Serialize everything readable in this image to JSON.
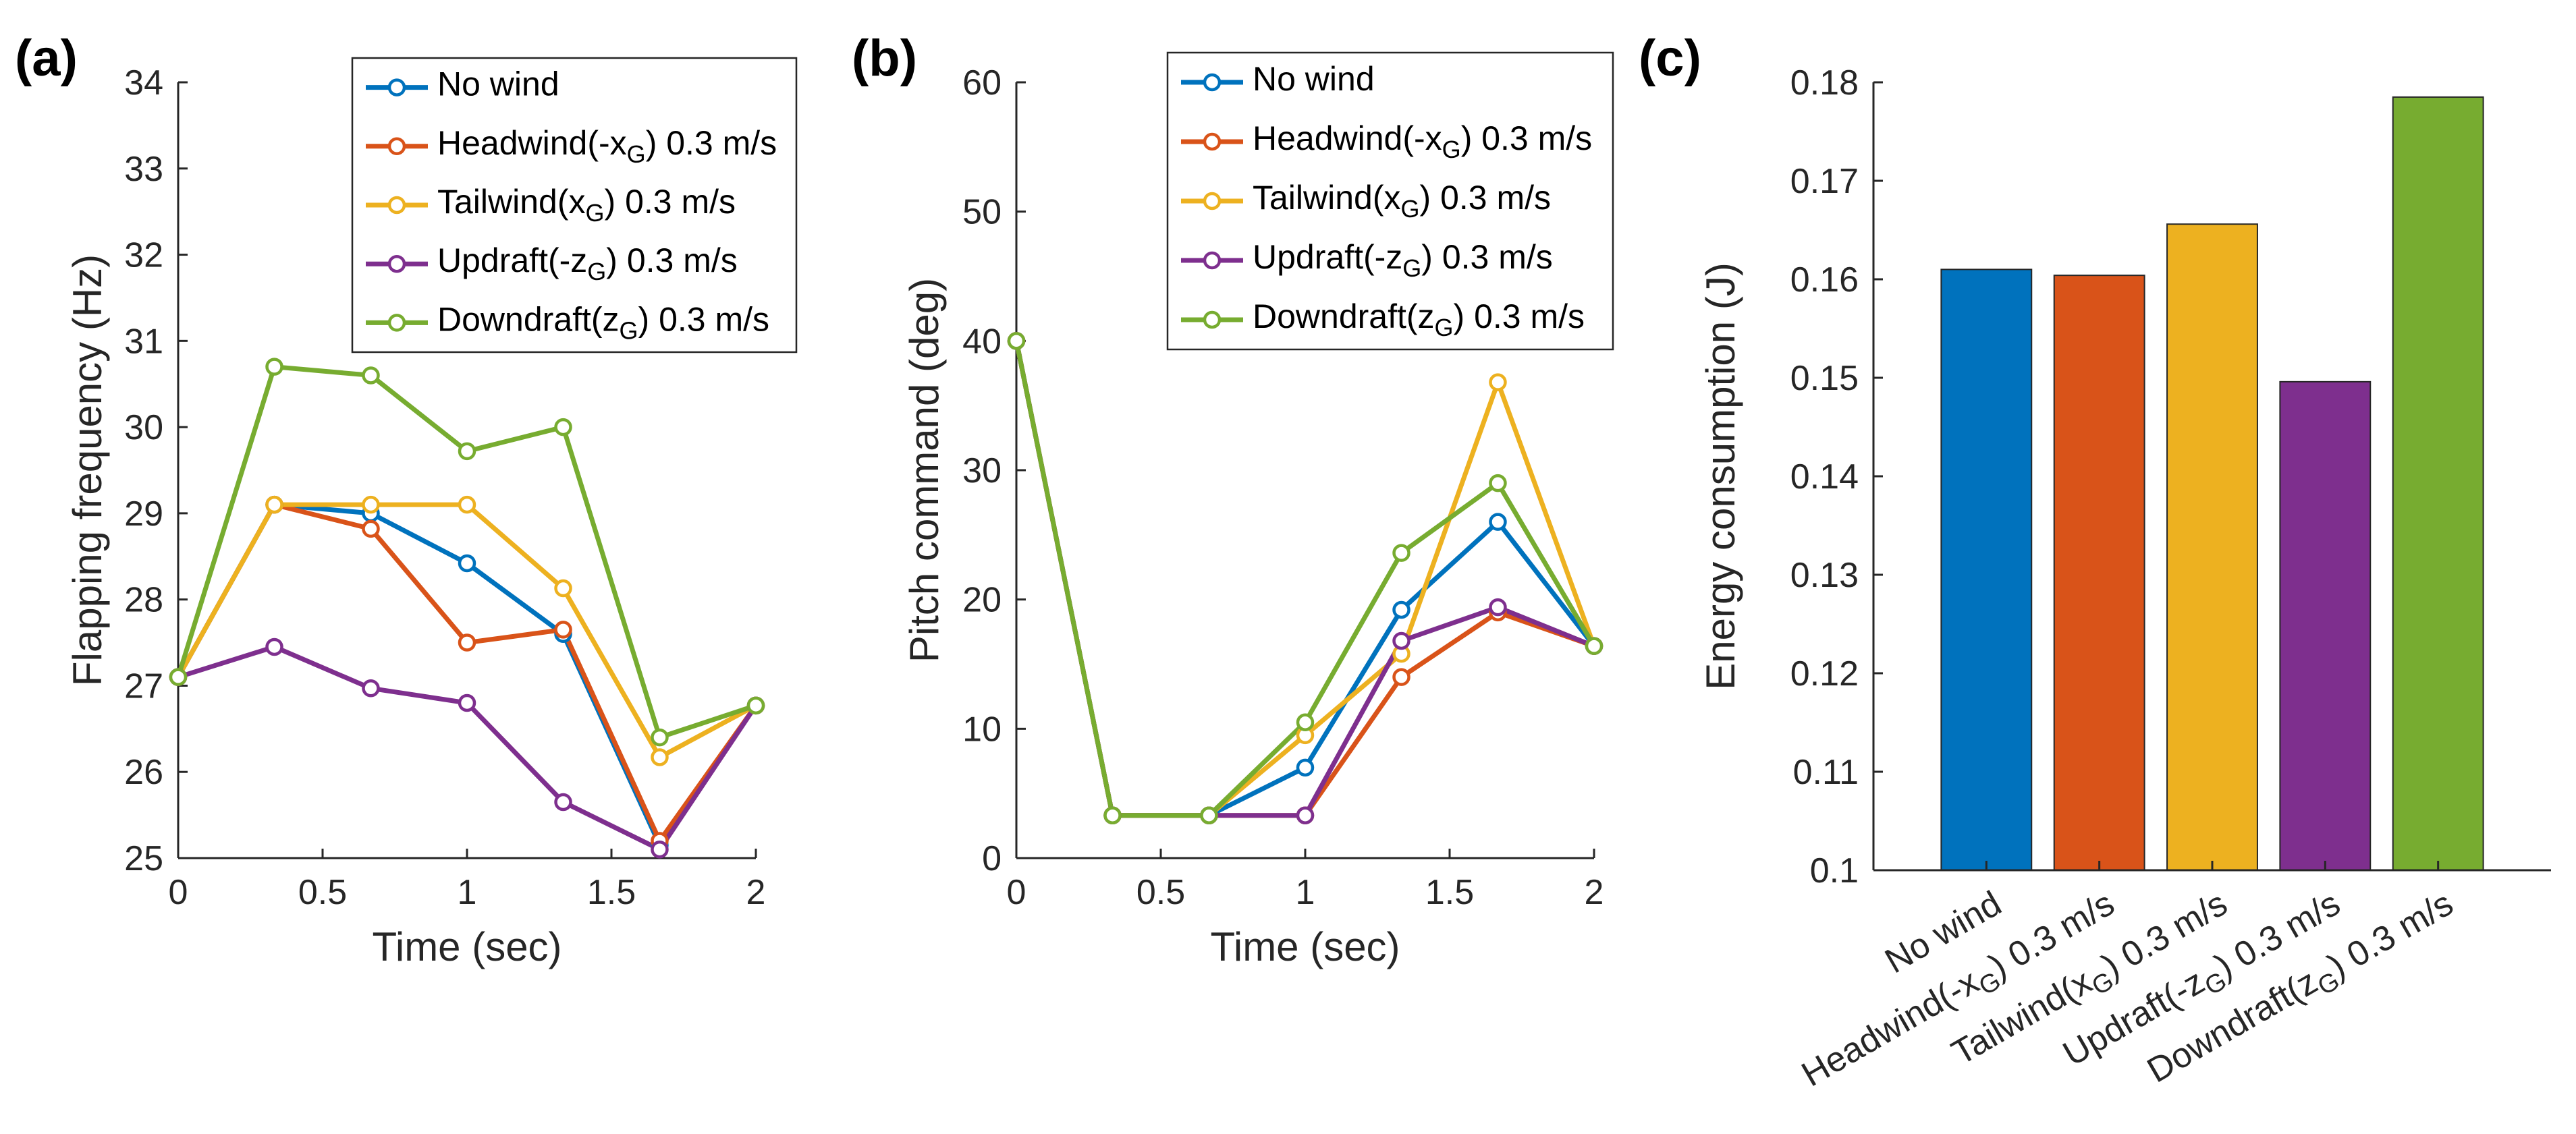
{
  "figure": {
    "panel_labels": [
      "(a)",
      "(b)",
      "(c)"
    ]
  },
  "chart_data": [
    {
      "type": "line",
      "panel": "(a)",
      "title": "",
      "xlabel": "Time (sec)",
      "ylabel": "Flapping frequency (Hz)",
      "xlim": [
        0,
        2
      ],
      "ylim": [
        25,
        34
      ],
      "xticks": [
        0,
        0.5,
        1,
        1.5,
        2
      ],
      "xtick_labels": [
        "0",
        "0.5",
        "1",
        "1.5",
        "2"
      ],
      "yticks": [
        25,
        26,
        27,
        28,
        29,
        30,
        31,
        32,
        33,
        34
      ],
      "ytick_labels": [
        "25",
        "26",
        "27",
        "28",
        "29",
        "30",
        "31",
        "32",
        "33",
        "34"
      ],
      "grid": false,
      "legend_position": "top-right",
      "x": [
        0,
        0.333,
        0.667,
        1,
        1.333,
        1.667,
        2
      ],
      "series": [
        {
          "name": "No wind",
          "name_parts": [
            "No wind",
            "",
            ""
          ],
          "color": "#0072BD",
          "values": [
            27.1,
            29.1,
            29.0,
            28.42,
            27.6,
            25.15,
            26.77
          ]
        },
        {
          "name": "Headwind(-xG) 0.3 m/s",
          "name_parts": [
            "Headwind(-x",
            "G",
            ") 0.3 m/s"
          ],
          "color": "#D95319",
          "values": [
            27.1,
            29.1,
            28.82,
            27.5,
            27.65,
            25.2,
            26.77
          ]
        },
        {
          "name": "Tailwind(xG) 0.3 m/s",
          "name_parts": [
            "Tailwind(x",
            "G",
            ") 0.3 m/s"
          ],
          "color": "#EDB120",
          "values": [
            27.1,
            29.1,
            29.1,
            29.1,
            28.13,
            26.17,
            26.77
          ]
        },
        {
          "name": "Updraft(-zG) 0.3 m/s",
          "name_parts": [
            "Updraft(-z",
            "G",
            ") 0.3 m/s"
          ],
          "color": "#7E2F8E",
          "values": [
            27.1,
            27.45,
            26.97,
            26.8,
            25.65,
            25.1,
            26.77
          ]
        },
        {
          "name": "Downdraft(zG) 0.3 m/s",
          "name_parts": [
            "Downdraft(z",
            "G",
            ") 0.3 m/s"
          ],
          "color": "#77AC30",
          "values": [
            27.1,
            30.7,
            30.6,
            29.72,
            30.0,
            26.4,
            26.77
          ]
        }
      ]
    },
    {
      "type": "line",
      "panel": "(b)",
      "title": "",
      "xlabel": "Time (sec)",
      "ylabel": "Pitch command (deg)",
      "xlim": [
        0,
        2
      ],
      "ylim": [
        0,
        60
      ],
      "xticks": [
        0,
        0.5,
        1,
        1.5,
        2
      ],
      "xtick_labels": [
        "0",
        "0.5",
        "1",
        "1.5",
        "2"
      ],
      "yticks": [
        0,
        10,
        20,
        30,
        40,
        50,
        60
      ],
      "ytick_labels": [
        "0",
        "10",
        "20",
        "30",
        "40",
        "50",
        "60"
      ],
      "grid": false,
      "legend_position": "top-right",
      "x": [
        0,
        0.333,
        0.667,
        1,
        1.333,
        1.667,
        2
      ],
      "series": [
        {
          "name": "No wind",
          "name_parts": [
            "No wind",
            "",
            ""
          ],
          "color": "#0072BD",
          "values": [
            40,
            3.3,
            3.3,
            7.0,
            19.2,
            26.0,
            16.4
          ]
        },
        {
          "name": "Headwind(-xG) 0.3 m/s",
          "name_parts": [
            "Headwind(-x",
            "G",
            ") 0.3 m/s"
          ],
          "color": "#D95319",
          "values": [
            40,
            3.3,
            3.3,
            3.3,
            14.0,
            19.0,
            16.4
          ]
        },
        {
          "name": "Tailwind(xG) 0.3 m/s",
          "name_parts": [
            "Tailwind(x",
            "G",
            ") 0.3 m/s"
          ],
          "color": "#EDB120",
          "values": [
            40,
            3.3,
            3.3,
            9.5,
            15.8,
            36.8,
            16.4
          ]
        },
        {
          "name": "Updraft(-zG) 0.3 m/s",
          "name_parts": [
            "Updraft(-z",
            "G",
            ") 0.3 m/s"
          ],
          "color": "#7E2F8E",
          "values": [
            40,
            3.3,
            3.3,
            3.3,
            16.8,
            19.4,
            16.4
          ]
        },
        {
          "name": "Downdraft(zG) 0.3 m/s",
          "name_parts": [
            "Downdraft(z",
            "G",
            ") 0.3 m/s"
          ],
          "color": "#77AC30",
          "values": [
            40,
            3.3,
            3.3,
            10.5,
            23.6,
            29.0,
            16.4
          ]
        }
      ]
    },
    {
      "type": "bar",
      "panel": "(c)",
      "title": "",
      "xlabel": "",
      "ylabel": "Energy consumption (J)",
      "ylim": [
        0.1,
        0.18
      ],
      "yticks": [
        0.1,
        0.11,
        0.12,
        0.13,
        0.14,
        0.15,
        0.16,
        0.17,
        0.18
      ],
      "ytick_labels": [
        "0.1",
        "0.11",
        "0.12",
        "0.13",
        "0.14",
        "0.15",
        "0.16",
        "0.17",
        "0.18"
      ],
      "grid": false,
      "categories": [
        "No wind",
        "Headwind(-xG) 0.3 m/s",
        "Tailwind(xG) 0.3 m/s",
        "Updraft(-zG) 0.3 m/s",
        "Downdraft(zG) 0.3 m/s"
      ],
      "category_parts": [
        [
          "No wind",
          "",
          ""
        ],
        [
          "Headwind(-x",
          "G",
          ") 0.3 m/s"
        ],
        [
          "Tailwind(x",
          "G",
          ") 0.3 m/s"
        ],
        [
          "Updraft(-z",
          "G",
          ") 0.3 m/s"
        ],
        [
          "Downdraft(z",
          "G",
          ") 0.3 m/s"
        ]
      ],
      "colors": [
        "#0072BD",
        "#D95319",
        "#EDB120",
        "#7E2F8E",
        "#77AC30"
      ],
      "values": [
        0.161,
        0.1604,
        0.1656,
        0.1496,
        0.1785
      ]
    }
  ]
}
